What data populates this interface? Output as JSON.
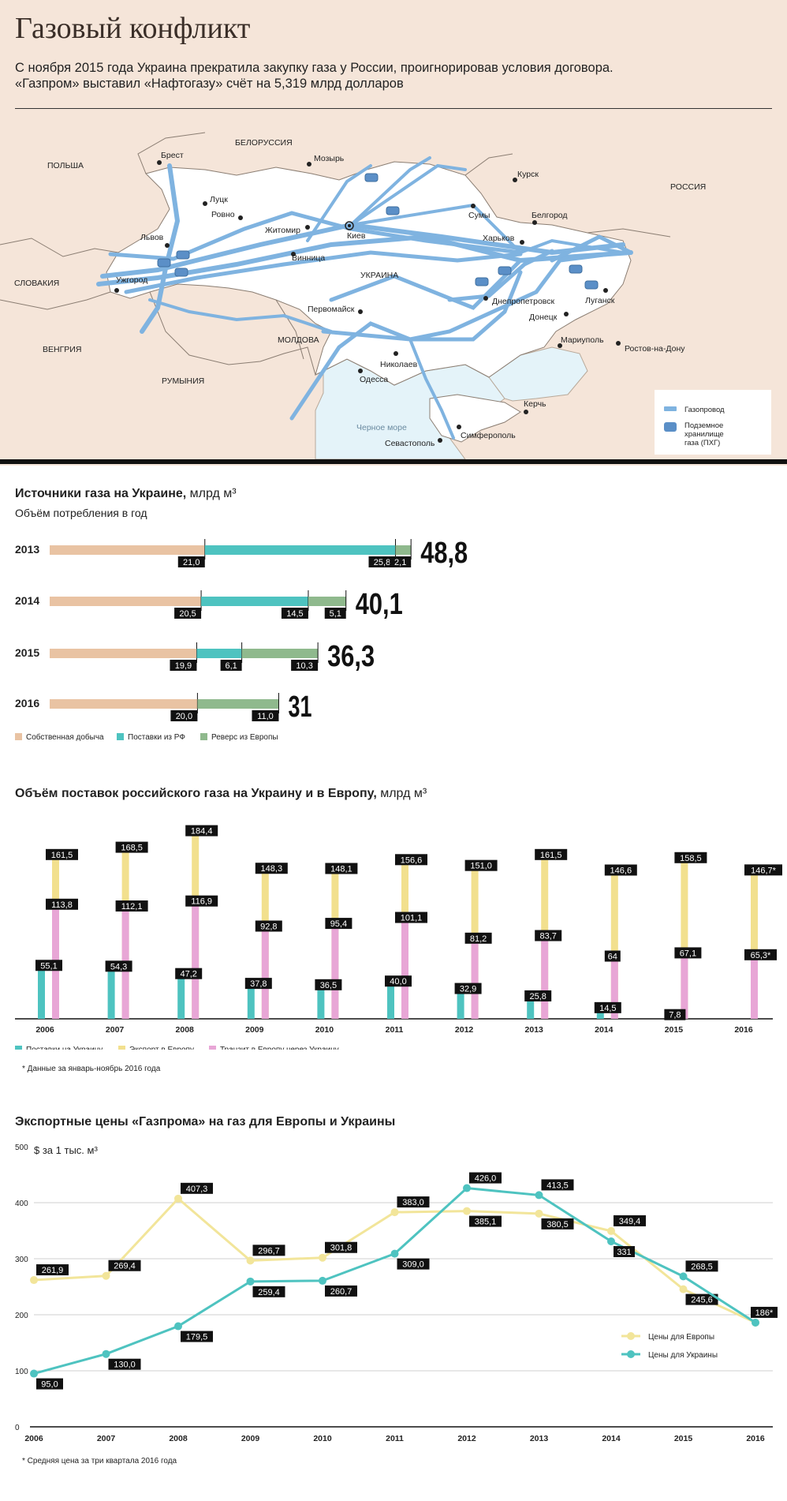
{
  "header": {
    "title": "Газовый конфликт",
    "subtitle_line1": "С ноября 2015 года Украина прекратила закупку газа у России, проигнорировав условия договора.",
    "subtitle_line2": "«Газпром» выставил «Нафтогазу» счёт на 5,319 млрд долларов"
  },
  "map": {
    "countries": [
      "ПОЛЬША",
      "БЕЛОРУССИЯ",
      "РОССИЯ",
      "СЛОВАКИЯ",
      "ВЕНГРИЯ",
      "РУМЫНИЯ",
      "МОЛДОВА",
      "УКРАИНА"
    ],
    "cities": [
      "Брест",
      "Мозырь",
      "Курск",
      "Луцк",
      "Ровно",
      "Житомир",
      "Киев",
      "Сумы",
      "Белгород",
      "Харьков",
      "Львов",
      "Винница",
      "Ужгород",
      "Днепропетровск",
      "Луганск",
      "Донецк",
      "Первомайск",
      "Мариуполь",
      "Ростов-на-Дону",
      "Николаев",
      "Одесса",
      "Керчь",
      "Симферополь",
      "Севастополь"
    ],
    "sea": "Черное море",
    "legend": {
      "pipeline": "Газопровод",
      "storage_line1": "Подземное",
      "storage_line2": "хранилище",
      "storage_line3": "газа (ПХГ)"
    },
    "colors": {
      "land": "#f5e5d9",
      "ukraine": "#ffffff",
      "sea": "#e4f3f9",
      "pipeline": "#7fb3e0",
      "storage": "#5b8fc7"
    }
  },
  "section1": {
    "title": "Источники газа на Украине,",
    "unit": "млрд м³",
    "subtitle": "Объём потребления в год",
    "legend": [
      "Собственная добыча",
      "Поставки из РФ",
      "Реверс из Европы"
    ],
    "colors": {
      "own": "#e9c3a3",
      "rf": "#4ec3c0",
      "europe": "#8fb98d"
    },
    "rows": [
      {
        "year": "2013",
        "own": 21.0,
        "rf": 25.8,
        "europe": 2.1,
        "own_label": "21,0",
        "rf_label": "25,8",
        "europe_label": "2,1",
        "total_label": "48,8"
      },
      {
        "year": "2014",
        "own": 20.5,
        "rf": 14.5,
        "europe": 5.1,
        "own_label": "20,5",
        "rf_label": "14,5",
        "europe_label": "5,1",
        "total_label": "40,1"
      },
      {
        "year": "2015",
        "own": 19.9,
        "rf": 6.1,
        "europe": 10.3,
        "own_label": "19,9",
        "rf_label": "6,1",
        "europe_label": "10,3",
        "total_label": "36,3"
      },
      {
        "year": "2016",
        "own": 20.0,
        "rf": 0,
        "europe": 11.0,
        "own_label": "20,0",
        "rf_label": "",
        "europe_label": "11,0",
        "total_label": "31"
      }
    ]
  },
  "section2": {
    "title": "Объём поставок российского газа на Украину и в Европу,",
    "unit": "млрд м³",
    "legend": [
      "Поставки на Украину",
      "Экспорт в Европу",
      "Транзит в Европу через Украину"
    ],
    "colors": {
      "ukraine": "#4ec3c0",
      "export": "#f2e08e",
      "transit": "#e8a6d6"
    },
    "note": "* Данные за январь-ноябрь 2016 года"
  },
  "section3": {
    "title": "Экспортные цены «Газпрома» на газ для Европы и Украины",
    "subtitle": "$ за 1 тыс. м³",
    "legend": [
      "Цены для Европы",
      "Цены для Украины"
    ],
    "colors": {
      "europe": "#f2e59a",
      "ukraine": "#4ec3c0"
    },
    "note": "* Средняя цена за три квартала 2016 года"
  },
  "chart_data": [
    {
      "type": "bar",
      "title": "Источники газа на Украине, млрд м³",
      "subtitle": "Объём потребления в год",
      "categories": [
        "2013",
        "2014",
        "2015",
        "2016"
      ],
      "series": [
        {
          "name": "Собственная добыча",
          "values": [
            21.0,
            20.5,
            19.9,
            20.0
          ]
        },
        {
          "name": "Поставки из РФ",
          "values": [
            25.8,
            14.5,
            6.1,
            0
          ]
        },
        {
          "name": "Реверс из Европы",
          "values": [
            2.1,
            5.1,
            10.3,
            11.0
          ]
        }
      ],
      "totals": [
        48.8,
        40.1,
        36.3,
        31
      ]
    },
    {
      "type": "bar",
      "title": "Объём поставок российского газа на Украину и в Европу, млрд м³",
      "categories": [
        "2006",
        "2007",
        "2008",
        "2009",
        "2010",
        "2011",
        "2012",
        "2013",
        "2014",
        "2015",
        "2016"
      ],
      "series": [
        {
          "name": "Поставки на Украину",
          "values": [
            55.1,
            54.3,
            47.2,
            37.8,
            36.5,
            40.0,
            32.9,
            25.8,
            14.5,
            7.8,
            null
          ],
          "labels": [
            "55,1",
            "54,3",
            "47,2",
            "37,8",
            "36,5",
            "40,0",
            "32,9",
            "25,8",
            "14,5",
            "7,8",
            ""
          ]
        },
        {
          "name": "Экспорт в Европу",
          "values": [
            161.5,
            168.5,
            184.4,
            148.3,
            148.1,
            156.6,
            151.0,
            161.5,
            146.6,
            158.5,
            146.7
          ],
          "labels": [
            "161,5",
            "168,5",
            "184,4",
            "148,3",
            "148,1",
            "156,6",
            "151,0",
            "161,5",
            "146,6",
            "158,5",
            "146,7*"
          ]
        },
        {
          "name": "Транзит в Европу через Украину",
          "values": [
            113.8,
            112.1,
            116.9,
            92.8,
            95.4,
            101.1,
            81.2,
            83.7,
            64,
            67.1,
            65.3
          ],
          "labels": [
            "113,8",
            "112,1",
            "116,9",
            "92,8",
            "95,4",
            "101,1",
            "81,2",
            "83,7",
            "64",
            "67,1",
            "65,3*"
          ]
        }
      ]
    },
    {
      "type": "line",
      "title": "Экспортные цены «Газпрома» на газ для Европы и Украины",
      "ylabel": "$ за 1 тыс. м³",
      "x": [
        "2006",
        "2007",
        "2008",
        "2009",
        "2010",
        "2011",
        "2012",
        "2013",
        "2014",
        "2015",
        "2016"
      ],
      "ylim": [
        0,
        500
      ],
      "yticks": [
        0,
        100,
        200,
        300,
        400,
        500
      ],
      "series": [
        {
          "name": "Цены для Европы",
          "values": [
            261.9,
            269.4,
            407.3,
            296.7,
            301.8,
            383.0,
            385.1,
            380.5,
            349.4,
            245.6,
            186
          ],
          "labels": [
            "261,9",
            "269,4",
            "407,3",
            "296,7",
            "301,8",
            "383,0",
            "385,1",
            "380,5",
            "349,4",
            "245,6",
            "186*"
          ]
        },
        {
          "name": "Цены для Украины",
          "values": [
            95.0,
            130.0,
            179.5,
            259.4,
            260.7,
            309.0,
            426.0,
            413.5,
            331,
            268.5,
            186
          ],
          "labels": [
            "95,0",
            "130,0",
            "179,5",
            "259,4",
            "260,7",
            "309,0",
            "426,0",
            "413,5",
            "331",
            "268,5",
            "186*"
          ]
        }
      ]
    }
  ]
}
